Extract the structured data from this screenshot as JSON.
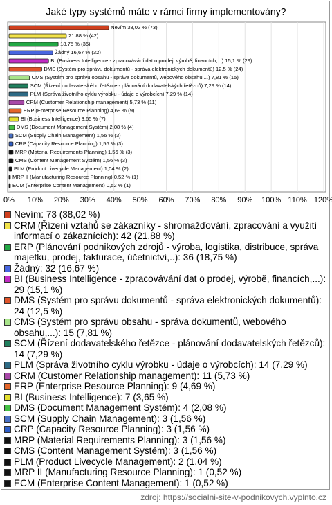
{
  "chart_data": {
    "type": "barh",
    "title": "Jaké typy systémů máte v rámci firmy implementovány?",
    "categories": [
      "Nevím: 73 (38,02 %)",
      "CRM (Řízení vztahů se zákazníky - shromažďování, zpracování a využití informací o zákaznících): 42 (21,88 %)",
      "ERP (Plánování podnikových zdrojů - výroba, logistika, distribuce, správa majetku, prodej, fakturace, účetnictví,..): 36 (18,75 %)",
      "Žádný: 32 (16,67 %)",
      "BI (Business Intelligence - zpracovávání dat o prodej, výrobě, financích,...): 29 (15,1 %)",
      "DMS (Systém pro správu dokumentů - správa elektronických dokumentů): 24 (12,5 %)",
      "CMS (Systém pro správu obsahu - správa dokumentů, webového obsahu,...): 15 (7,81 %)",
      "SCM (Řízení dodavatelského řetězce - plánování dodavatelských řetězců): 14 (7,29 %)",
      "PLM (Správa životního cyklu výrobku - údaje o výrobcích): 14 (7,29 %)",
      "CRM (Customer Relationship management): 11 (5,73 %)",
      "ERP (Enterprise Resource Planning): 9 (4,69 %)",
      "BI (Business Intelligence): 7 (3,65 %)",
      "DMS (Document Management Systém): 4 (2,08 %)",
      "SCM (Supply Chain Management): 3 (1,56 %)",
      "CRP (Capacity Resource Planning): 3 (1,56 %)",
      "MRP (Material Requirements Planning): 3 (1,56 %)",
      "CMS (Content Management Systém): 3 (1,56 %)",
      "PLM (Product Livecycle Management): 2 (1,04 %)",
      "MRP II (Manufacturing Resource Planning): 1 (0,52 %)",
      "ECM (Enterprise Content Management): 1 (0,52 %)"
    ],
    "values": [
      38.02,
      21.88,
      18.75,
      16.67,
      15.1,
      12.5,
      7.81,
      7.29,
      7.29,
      5.73,
      4.69,
      3.65,
      2.08,
      1.56,
      1.56,
      1.56,
      1.56,
      1.04,
      0.52,
      0.52
    ],
    "value_labels": [
      "Nevím 38,02 % (73)",
      "21,88 % (42)",
      "18,75 % (36)",
      "Žádný 16,67 % (32)",
      "BI (Business Intelligence - zpracovávání dat o prodej, výrobě, financích,...) 15,1 % (29)",
      "DMS (Systém pro správu dokumentů - správa elektronických dokumentů) 12,5 % (24)",
      "CMS (Systém pro správu obsahu - správa dokumentů, webového obsahu,...) 7,81 % (15)",
      "SCM (Řízení dodavatelského řetězce - plánování dodavatelských řetězců) 7,29 % (14)",
      "PLM (Správa životního cyklu výrobku - údaje o výrobcích) 7,29 % (14)",
      "CRM (Customer Relationship management) 5,73 % (11)",
      "ERP (Enterprise Resource Planning) 4,69 % (9)",
      "BI (Business Intelligence) 3,65 % (7)",
      "DMS (Document Management Systém) 2,08 % (4)",
      "SCM (Supply Chain Management) 1,56 % (3)",
      "CRP (Capacity Resource Planning) 1,56 % (3)",
      "MRP (Material Requirements Planning) 1,56 % (3)",
      "CMS (Content Management Systém) 1,56 % (3)",
      "PLM (Product Livecycle Management) 1,04 % (2)",
      "MRP II (Manufacturing Resource Planning) 0,52 % (1)",
      "ECM (Enterprise Content Management) 0,52 % (1)"
    ],
    "colors": [
      "#d0401e",
      "#f2e34a",
      "#22a845",
      "#4866e0",
      "#c22cc4",
      "#e0542a",
      "#a8e48a",
      "#20805e",
      "#2e6a84",
      "#a848a8",
      "#e4662a",
      "#e4e030",
      "#44c044",
      "#4870c4",
      "#2e5ec8",
      "#111111",
      "#111111",
      "#111111",
      "#111111",
      "#111111"
    ],
    "xlim": [
      0,
      120
    ],
    "xticks": [
      {
        "value": 0,
        "label": "0%"
      },
      {
        "value": 10,
        "label": "10%"
      },
      {
        "value": 20,
        "label": "20%"
      },
      {
        "value": 30,
        "label": "30%"
      },
      {
        "value": 40,
        "label": "40%"
      },
      {
        "value": 50,
        "label": "50%"
      },
      {
        "value": 60,
        "label": "60%"
      },
      {
        "value": 70,
        "label": "70%"
      },
      {
        "value": 80,
        "label": "80%"
      },
      {
        "value": 90,
        "label": "90%"
      },
      {
        "value": 100,
        "label": "100%"
      },
      {
        "value": 110,
        "label": "110%"
      },
      {
        "value": 120,
        "label": "120%"
      }
    ],
    "grid": true,
    "source": "zdroj: https://socialni-site-v-podnikovych.vyplnto.cz"
  }
}
